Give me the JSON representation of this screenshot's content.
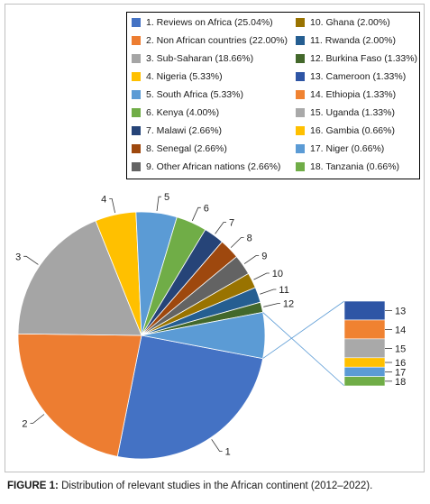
{
  "chart_data": {
    "type": "pie",
    "slices": [
      {
        "id": "1",
        "label": "Reviews on Africa",
        "value": 25.04,
        "value_text": "25.04%",
        "color": "#4472c4"
      },
      {
        "id": "2",
        "label": "Non African countries",
        "value": 22.0,
        "value_text": "22.00%",
        "color": "#ed7d31"
      },
      {
        "id": "3",
        "label": "Sub-Saharan",
        "value": 18.66,
        "value_text": "18.66%",
        "color": "#a5a5a5"
      },
      {
        "id": "4",
        "label": "Nigeria",
        "value": 5.33,
        "value_text": "5.33%",
        "color": "#ffc000"
      },
      {
        "id": "5",
        "label": "South Africa",
        "value": 5.33,
        "value_text": "5.33%",
        "color": "#5b9bd5"
      },
      {
        "id": "6",
        "label": "Kenya",
        "value": 4.0,
        "value_text": "4.00%",
        "color": "#70ad47"
      },
      {
        "id": "7",
        "label": "Malawi",
        "value": 2.66,
        "value_text": "2.66%",
        "color": "#264478"
      },
      {
        "id": "8",
        "label": "Senegal",
        "value": 2.66,
        "value_text": "2.66%",
        "color": "#9e480e"
      },
      {
        "id": "9",
        "label": "Other African nations",
        "value": 2.66,
        "value_text": "2.66%",
        "color": "#636363"
      },
      {
        "id": "10",
        "label": "Ghana",
        "value": 2.0,
        "value_text": "2.00%",
        "color": "#997300"
      },
      {
        "id": "11",
        "label": "Rwanda",
        "value": 2.0,
        "value_text": "2.00%",
        "color": "#255e91"
      },
      {
        "id": "12",
        "label": "Burkina Faso",
        "value": 1.33,
        "value_text": "1.33%",
        "color": "#43682b"
      },
      {
        "id": "13",
        "label": "Cameroon",
        "value": 1.33,
        "value_text": "1.33%",
        "color": "#2e55a5"
      },
      {
        "id": "14",
        "label": "Ethiopia",
        "value": 1.33,
        "value_text": "1.33%",
        "color": "#f08231"
      },
      {
        "id": "15",
        "label": "Uganda",
        "value": 1.33,
        "value_text": "1.33%",
        "color": "#a9a9a9"
      },
      {
        "id": "16",
        "label": "Gambia",
        "value": 0.66,
        "value_text": "0.66%",
        "color": "#ffc000"
      },
      {
        "id": "17",
        "label": "Niger",
        "value": 0.66,
        "value_text": "0.66%",
        "color": "#5b9bd5"
      },
      {
        "id": "18",
        "label": "Tanzania",
        "value": 0.66,
        "value_text": "0.66%",
        "color": "#70ad47"
      }
    ],
    "main_pie_count": 13,
    "bar_of_pie_ids": [
      "13",
      "14",
      "15",
      "16",
      "17",
      "18"
    ],
    "legend_placement": "top-right",
    "grid": false
  },
  "caption": {
    "label": "FIGURE 1:",
    "text": " Distribution of relevant studies in the African continent (2012–2022)."
  }
}
